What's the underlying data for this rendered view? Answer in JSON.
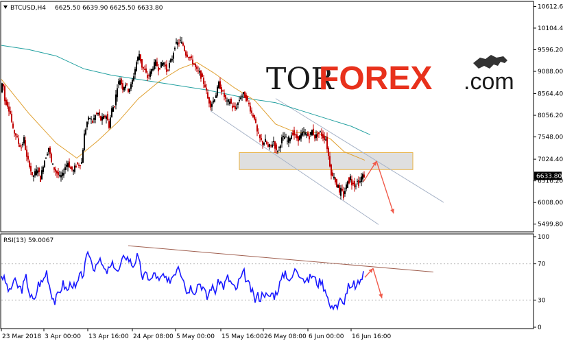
{
  "chart_data": [
    {
      "type": "candlestick",
      "symbol_header": "BTCUSD,H4",
      "ohlc_header": "6625.50 6639.90 6625.50 6633.80",
      "current_price": "6633.80",
      "ylim": [
        5350,
        10700
      ],
      "y_ticks": [
        "10612.60",
        "10104.40",
        "9596.20",
        "9088.00",
        "8564.40",
        "8056.20",
        "7548.00",
        "7024.40",
        "6516.20",
        "6008.00",
        "5499.80"
      ],
      "x_ticks": [
        "23 Mar 2018",
        "3 Apr 00:00",
        "13 Apr 16:00",
        "24 Apr 08:00",
        "5 May 00:00",
        "15 May 16:00",
        "26 May 08:00",
        "6 Jun 00:00",
        "16 Jun 16:00"
      ],
      "price_path": [
        [
          0,
          8600
        ],
        [
          3,
          8900
        ],
        [
          6,
          8400
        ],
        [
          10,
          8300
        ],
        [
          14,
          8100
        ],
        [
          18,
          7700
        ],
        [
          22,
          7600
        ],
        [
          26,
          7400
        ],
        [
          30,
          7300
        ],
        [
          34,
          7500
        ],
        [
          38,
          7050
        ],
        [
          42,
          6900
        ],
        [
          46,
          6600
        ],
        [
          50,
          6700
        ],
        [
          54,
          6800
        ],
        [
          58,
          6550
        ],
        [
          62,
          6900
        ],
        [
          66,
          7100
        ],
        [
          70,
          7300
        ],
        [
          74,
          6950
        ],
        [
          78,
          6800
        ],
        [
          82,
          6700
        ],
        [
          86,
          6600
        ],
        [
          90,
          6650
        ],
        [
          94,
          6850
        ],
        [
          98,
          6950
        ],
        [
          102,
          6800
        ],
        [
          106,
          6750
        ],
        [
          110,
          6900
        ],
        [
          114,
          6900
        ],
        [
          118,
          6950
        ],
        [
          122,
          7600
        ],
        [
          126,
          7900
        ],
        [
          130,
          8000
        ],
        [
          134,
          7900
        ],
        [
          138,
          8050
        ],
        [
          142,
          8100
        ],
        [
          146,
          7950
        ],
        [
          150,
          8000
        ],
        [
          154,
          8050
        ],
        [
          158,
          7800
        ],
        [
          162,
          8200
        ],
        [
          166,
          8300
        ],
        [
          170,
          8750
        ],
        [
          174,
          8900
        ],
        [
          178,
          8700
        ],
        [
          182,
          8800
        ],
        [
          186,
          8650
        ],
        [
          190,
          8750
        ],
        [
          194,
          9000
        ],
        [
          198,
          9300
        ],
        [
          202,
          9500
        ],
        [
          206,
          9200
        ],
        [
          210,
          9100
        ],
        [
          214,
          8950
        ],
        [
          218,
          9050
        ],
        [
          222,
          9200
        ],
        [
          226,
          9300
        ],
        [
          230,
          9150
        ],
        [
          234,
          9250
        ],
        [
          238,
          9300
        ],
        [
          242,
          9100
        ],
        [
          246,
          9250
        ],
        [
          250,
          9400
        ],
        [
          254,
          9700
        ],
        [
          258,
          9750
        ],
        [
          262,
          9800
        ],
        [
          266,
          9700
        ],
        [
          270,
          9500
        ],
        [
          274,
          9450
        ],
        [
          278,
          9350
        ],
        [
          282,
          9250
        ],
        [
          286,
          9100
        ],
        [
          290,
          9050
        ],
        [
          294,
          8900
        ],
        [
          298,
          8750
        ],
        [
          302,
          8450
        ],
        [
          306,
          8300
        ],
        [
          310,
          8400
        ],
        [
          314,
          8550
        ],
        [
          318,
          8800
        ],
        [
          322,
          8650
        ],
        [
          326,
          8500
        ],
        [
          330,
          8350
        ],
        [
          334,
          8400
        ],
        [
          338,
          8250
        ],
        [
          342,
          8200
        ],
        [
          346,
          8350
        ],
        [
          350,
          8500
        ],
        [
          354,
          8550
        ],
        [
          358,
          8450
        ],
        [
          362,
          8300
        ],
        [
          366,
          8100
        ],
        [
          370,
          8000
        ],
        [
          374,
          7650
        ],
        [
          378,
          7500
        ],
        [
          382,
          7400
        ],
        [
          386,
          7450
        ],
        [
          390,
          7300
        ],
        [
          394,
          7350
        ],
        [
          398,
          7450
        ],
        [
          402,
          7200
        ],
        [
          406,
          7300
        ],
        [
          410,
          7500
        ],
        [
          414,
          7550
        ],
        [
          418,
          7450
        ],
        [
          422,
          7550
        ],
        [
          426,
          7650
        ],
        [
          430,
          7550
        ],
        [
          434,
          7500
        ],
        [
          438,
          7600
        ],
        [
          442,
          7650
        ],
        [
          446,
          7600
        ],
        [
          450,
          7550
        ],
        [
          454,
          7700
        ],
        [
          458,
          7550
        ],
        [
          462,
          7600
        ],
        [
          466,
          7650
        ],
        [
          470,
          7550
        ],
        [
          474,
          7500
        ],
        [
          476,
          7300
        ],
        [
          478,
          7100
        ],
        [
          480,
          6900
        ],
        [
          482,
          6700
        ],
        [
          484,
          6600
        ],
        [
          486,
          6650
        ],
        [
          488,
          6500
        ],
        [
          490,
          6400
        ],
        [
          492,
          6450
        ],
        [
          494,
          6200
        ],
        [
          496,
          6300
        ],
        [
          498,
          6250
        ],
        [
          500,
          6150
        ],
        [
          502,
          6300
        ],
        [
          504,
          6400
        ],
        [
          506,
          6550
        ],
        [
          508,
          6500
        ],
        [
          510,
          6600
        ],
        [
          512,
          6450
        ],
        [
          514,
          6500
        ],
        [
          516,
          6400
        ],
        [
          518,
          6450
        ],
        [
          520,
          6500
        ],
        [
          522,
          6450
        ],
        [
          524,
          6500
        ],
        [
          526,
          6600
        ],
        [
          528,
          6634
        ]
      ],
      "ma_slow_path": [
        [
          0,
          9700
        ],
        [
          40,
          9600
        ],
        [
          80,
          9450
        ],
        [
          120,
          9150
        ],
        [
          160,
          9000
        ],
        [
          200,
          8900
        ],
        [
          240,
          8800
        ],
        [
          280,
          8700
        ],
        [
          300,
          8650
        ],
        [
          330,
          8550
        ],
        [
          360,
          8450
        ],
        [
          400,
          8350
        ],
        [
          440,
          8150
        ],
        [
          480,
          7950
        ],
        [
          510,
          7800
        ],
        [
          538,
          7600
        ]
      ],
      "ma_fast_path": [
        [
          0,
          8900
        ],
        [
          40,
          8100
        ],
        [
          80,
          7400
        ],
        [
          110,
          7050
        ],
        [
          140,
          7450
        ],
        [
          170,
          7900
        ],
        [
          200,
          8450
        ],
        [
          230,
          8850
        ],
        [
          260,
          9150
        ],
        [
          285,
          9300
        ],
        [
          310,
          9050
        ],
        [
          340,
          8700
        ],
        [
          370,
          8400
        ],
        [
          400,
          7850
        ],
        [
          430,
          7650
        ],
        [
          460,
          7650
        ],
        [
          480,
          7500
        ],
        [
          500,
          7200
        ],
        [
          530,
          7000
        ]
      ],
      "channel_lines": [
        [
          [
            305,
            8160
          ],
          [
            550,
            5490
          ]
        ],
        [
          [
            400,
            8450
          ],
          [
            645,
            6010
          ]
        ]
      ],
      "resistance_zone": {
        "x1": 347,
        "x2": 600,
        "y_top": 7180,
        "y_bottom": 6780
      },
      "up_arrow": {
        "from": [
          528,
          6500
        ],
        "to": [
          547,
          6980
        ]
      },
      "down_arrow": {
        "from": [
          547,
          6980
        ],
        "to": [
          572,
          5750
        ]
      }
    },
    {
      "type": "line",
      "title": "RSI(13) 59.0067",
      "ylim": [
        0,
        100
      ],
      "y_ticks": [
        "100",
        "70",
        "30",
        "0"
      ],
      "levels": [
        70,
        30
      ],
      "rsi_path": [
        [
          0,
          58
        ],
        [
          6,
          50
        ],
        [
          12,
          38
        ],
        [
          18,
          52
        ],
        [
          24,
          45
        ],
        [
          30,
          42
        ],
        [
          36,
          55
        ],
        [
          42,
          35
        ],
        [
          48,
          28
        ],
        [
          54,
          48
        ],
        [
          60,
          50
        ],
        [
          66,
          62
        ],
        [
          72,
          40
        ],
        [
          78,
          28
        ],
        [
          84,
          38
        ],
        [
          90,
          48
        ],
        [
          96,
          40
        ],
        [
          102,
          50
        ],
        [
          108,
          42
        ],
        [
          114,
          55
        ],
        [
          120,
          60
        ],
        [
          124,
          75
        ],
        [
          128,
          82
        ],
        [
          132,
          70
        ],
        [
          136,
          65
        ],
        [
          140,
          75
        ],
        [
          146,
          70
        ],
        [
          152,
          60
        ],
        [
          158,
          65
        ],
        [
          164,
          70
        ],
        [
          170,
          60
        ],
        [
          176,
          72
        ],
        [
          180,
          80
        ],
        [
          186,
          75
        ],
        [
          192,
          68
        ],
        [
          198,
          78
        ],
        [
          202,
          68
        ],
        [
          206,
          55
        ],
        [
          212,
          58
        ],
        [
          218,
          52
        ],
        [
          224,
          60
        ],
        [
          230,
          50
        ],
        [
          236,
          58
        ],
        [
          242,
          48
        ],
        [
          248,
          55
        ],
        [
          254,
          62
        ],
        [
          258,
          70
        ],
        [
          262,
          60
        ],
        [
          266,
          55
        ],
        [
          270,
          38
        ],
        [
          276,
          45
        ],
        [
          282,
          40
        ],
        [
          288,
          50
        ],
        [
          294,
          44
        ],
        [
          300,
          32
        ],
        [
          306,
          45
        ],
        [
          312,
          40
        ],
        [
          318,
          52
        ],
        [
          324,
          45
        ],
        [
          330,
          55
        ],
        [
          336,
          48
        ],
        [
          342,
          40
        ],
        [
          346,
          50
        ],
        [
          350,
          55
        ],
        [
          354,
          60
        ],
        [
          358,
          50
        ],
        [
          362,
          45
        ],
        [
          366,
          38
        ],
        [
          370,
          30
        ],
        [
          374,
          35
        ],
        [
          378,
          32
        ],
        [
          382,
          40
        ],
        [
          386,
          35
        ],
        [
          390,
          32
        ],
        [
          394,
          38
        ],
        [
          398,
          35
        ],
        [
          402,
          40
        ],
        [
          406,
          48
        ],
        [
          410,
          55
        ],
        [
          414,
          62
        ],
        [
          418,
          55
        ],
        [
          422,
          50
        ],
        [
          426,
          60
        ],
        [
          430,
          65
        ],
        [
          434,
          60
        ],
        [
          438,
          58
        ],
        [
          442,
          52
        ],
        [
          446,
          50
        ],
        [
          450,
          55
        ],
        [
          454,
          58
        ],
        [
          458,
          52
        ],
        [
          462,
          48
        ],
        [
          466,
          52
        ],
        [
          470,
          45
        ],
        [
          474,
          40
        ],
        [
          478,
          25
        ],
        [
          482,
          20
        ],
        [
          486,
          28
        ],
        [
          490,
          22
        ],
        [
          494,
          30
        ],
        [
          498,
          25
        ],
        [
          502,
          35
        ],
        [
          506,
          45
        ],
        [
          510,
          40
        ],
        [
          514,
          48
        ],
        [
          518,
          44
        ],
        [
          522,
          50
        ],
        [
          526,
          55
        ],
        [
          528,
          59
        ]
      ],
      "trend_line": [
        [
          185,
          90
        ],
        [
          630,
          61
        ]
      ],
      "up_arrow": {
        "from": [
          530,
          55
        ],
        "to": [
          542,
          65
        ]
      },
      "down_arrow": {
        "from": [
          542,
          65
        ],
        "to": [
          555,
          32
        ]
      }
    }
  ],
  "watermark": {
    "part1": "TOR",
    "part2": "FOREX",
    "part3": ".com"
  }
}
